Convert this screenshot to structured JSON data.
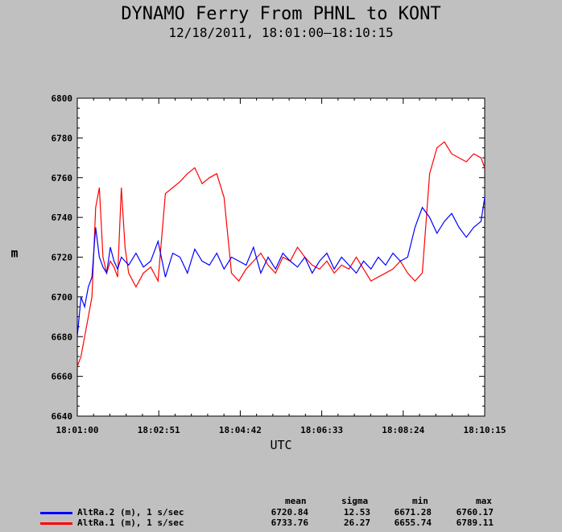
{
  "chart_data": {
    "type": "line",
    "title": "DYNAMO Ferry From PHNL to KONT",
    "subtitle": "12/18/2011, 18:01:00–18:10:15",
    "xlabel": "UTC",
    "ylabel": "m",
    "ylim": [
      6640,
      6800
    ],
    "yticks": [
      "6640",
      "6660",
      "6680",
      "6700",
      "6720",
      "6740",
      "6760",
      "6780",
      "6800"
    ],
    "xlim_seconds": [
      0,
      555
    ],
    "xticks": [
      "18:01:00",
      "18:02:51",
      "18:04:42",
      "18:06:33",
      "18:08:24",
      "18:10:15"
    ],
    "grid": false,
    "legend_position": "bottom",
    "stat_headers": [
      "mean",
      "sigma",
      "min",
      "max"
    ],
    "series": [
      {
        "name": "AltRa.2 (m), 1 s/sec",
        "color": "#0000ff",
        "stats": [
          "6720.84",
          "12.53",
          "6671.28",
          "6760.17"
        ],
        "x_seconds": [
          0,
          5,
          10,
          15,
          20,
          25,
          30,
          35,
          40,
          45,
          50,
          55,
          60,
          70,
          80,
          90,
          100,
          110,
          120,
          130,
          140,
          150,
          160,
          170,
          180,
          190,
          200,
          210,
          220,
          230,
          240,
          250,
          260,
          270,
          280,
          290,
          300,
          310,
          320,
          330,
          340,
          350,
          360,
          370,
          380,
          390,
          400,
          410,
          420,
          430,
          440,
          450,
          460,
          470,
          480,
          490,
          500,
          510,
          520,
          530,
          540,
          550,
          555
        ],
        "y": [
          6680,
          6700,
          6695,
          6705,
          6710,
          6735,
          6720,
          6715,
          6712,
          6725,
          6718,
          6714,
          6720,
          6716,
          6722,
          6715,
          6718,
          6728,
          6710,
          6722,
          6720,
          6712,
          6724,
          6718,
          6716,
          6722,
          6714,
          6720,
          6718,
          6716,
          6725,
          6712,
          6720,
          6714,
          6722,
          6718,
          6715,
          6720,
          6712,
          6718,
          6722,
          6714,
          6720,
          6716,
          6712,
          6718,
          6714,
          6720,
          6716,
          6722,
          6718,
          6720,
          6735,
          6745,
          6740,
          6732,
          6738,
          6742,
          6735,
          6730,
          6735,
          6738,
          6750
        ]
      },
      {
        "name": "AltRa.1 (m), 1 s/sec",
        "color": "#ff0000",
        "stats": [
          "6733.76",
          "26.27",
          "6655.74",
          "6789.11"
        ],
        "x_seconds": [
          0,
          5,
          10,
          15,
          20,
          25,
          30,
          35,
          40,
          45,
          50,
          55,
          60,
          65,
          70,
          80,
          90,
          100,
          110,
          120,
          130,
          140,
          150,
          160,
          170,
          180,
          190,
          200,
          210,
          220,
          230,
          240,
          250,
          260,
          270,
          280,
          290,
          300,
          310,
          320,
          330,
          340,
          350,
          360,
          370,
          380,
          390,
          400,
          410,
          420,
          430,
          440,
          450,
          460,
          470,
          480,
          490,
          500,
          510,
          520,
          530,
          540,
          550,
          555
        ],
        "y": [
          6665,
          6670,
          6680,
          6690,
          6700,
          6745,
          6755,
          6720,
          6712,
          6718,
          6715,
          6710,
          6755,
          6725,
          6712,
          6705,
          6712,
          6715,
          6708,
          6752,
          6755,
          6758,
          6762,
          6765,
          6757,
          6760,
          6762,
          6750,
          6712,
          6708,
          6714,
          6718,
          6722,
          6716,
          6712,
          6720,
          6718,
          6725,
          6720,
          6716,
          6714,
          6718,
          6712,
          6716,
          6714,
          6720,
          6714,
          6708,
          6710,
          6712,
          6714,
          6718,
          6712,
          6708,
          6712,
          6762,
          6775,
          6778,
          6772,
          6770,
          6768,
          6772,
          6770,
          6765
        ]
      }
    ]
  }
}
